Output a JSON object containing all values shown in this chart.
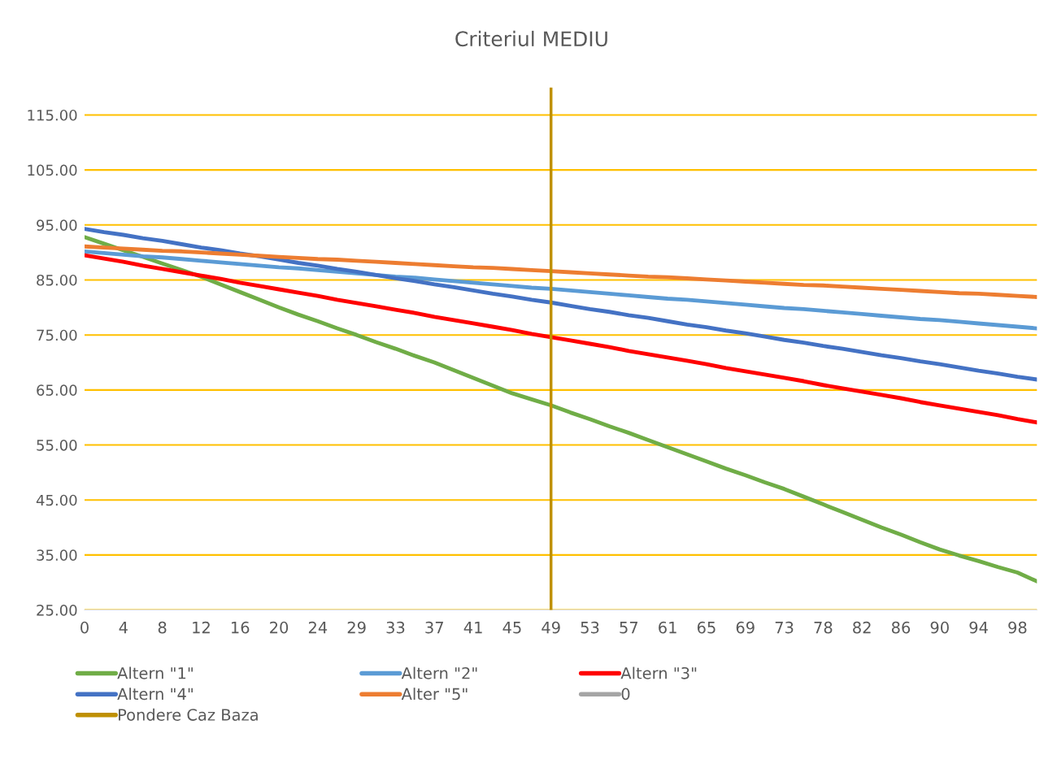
{
  "chart_data": {
    "type": "line",
    "title": "Criteriul MEDIU",
    "categories": [
      "0",
      null,
      "4",
      null,
      "8",
      null,
      "12",
      null,
      "16",
      null,
      "20",
      null,
      "24",
      null,
      "29",
      null,
      "33",
      null,
      "37",
      null,
      "41",
      null,
      "45",
      null,
      "49",
      null,
      "53",
      null,
      "57",
      null,
      "61",
      null,
      "65",
      null,
      "69",
      null,
      "73",
      null,
      "78",
      null,
      "82",
      null,
      "86",
      null,
      "90",
      null,
      "94",
      null,
      "98",
      null
    ],
    "series": [
      {
        "name": "Altern \"1\"",
        "color": "#70ad47",
        "values": [
          92.8,
          91.6,
          90.4,
          89.2,
          88.0,
          86.8,
          85.6,
          84.2,
          82.8,
          81.4,
          80.0,
          78.7,
          77.5,
          76.2,
          75.0,
          73.7,
          72.5,
          71.2,
          70.0,
          68.6,
          67.2,
          65.8,
          64.4,
          63.3,
          62.2,
          60.9,
          59.7,
          58.4,
          57.2,
          55.9,
          54.6,
          53.3,
          52.0,
          50.7,
          49.5,
          48.2,
          47.0,
          45.6,
          44.2,
          42.8,
          41.4,
          40.0,
          38.7,
          37.3,
          36.0,
          34.9,
          33.9,
          32.8,
          31.8,
          30.2
        ]
      },
      {
        "name": "Altern \"2\"",
        "color": "#5b9bd5",
        "values": [
          90.2,
          89.9,
          89.6,
          89.3,
          89.1,
          88.8,
          88.5,
          88.2,
          87.9,
          87.6,
          87.3,
          87.1,
          86.8,
          86.5,
          86.2,
          85.9,
          85.6,
          85.4,
          85.1,
          84.8,
          84.5,
          84.2,
          83.9,
          83.6,
          83.4,
          83.1,
          82.8,
          82.5,
          82.2,
          81.9,
          81.6,
          81.4,
          81.1,
          80.8,
          80.5,
          80.2,
          79.9,
          79.7,
          79.4,
          79.1,
          78.8,
          78.5,
          78.2,
          77.9,
          77.7,
          77.4,
          77.1,
          76.8,
          76.5,
          76.2
        ]
      },
      {
        "name": "Altern \"3\"",
        "color": "#ff0000",
        "values": [
          89.5,
          88.9,
          88.3,
          87.6,
          87.0,
          86.4,
          85.8,
          85.2,
          84.5,
          83.9,
          83.3,
          82.7,
          82.1,
          81.4,
          80.8,
          80.2,
          79.6,
          79.0,
          78.3,
          77.7,
          77.1,
          76.5,
          75.9,
          75.2,
          74.6,
          74.0,
          73.4,
          72.8,
          72.1,
          71.5,
          70.9,
          70.3,
          69.7,
          69.0,
          68.4,
          67.8,
          67.2,
          66.6,
          65.9,
          65.3,
          64.7,
          64.1,
          63.5,
          62.8,
          62.2,
          61.6,
          61.0,
          60.4,
          59.7,
          59.1
        ]
      },
      {
        "name": "Altern \"4\"",
        "color": "#4472c4",
        "values": [
          94.3,
          93.7,
          93.2,
          92.6,
          92.1,
          91.5,
          90.9,
          90.4,
          89.8,
          89.3,
          88.7,
          88.1,
          87.6,
          87.0,
          86.5,
          85.9,
          85.3,
          84.8,
          84.2,
          83.7,
          83.1,
          82.5,
          82.0,
          81.4,
          80.9,
          80.3,
          79.7,
          79.2,
          78.6,
          78.1,
          77.5,
          76.9,
          76.4,
          75.8,
          75.3,
          74.7,
          74.1,
          73.6,
          73.0,
          72.5,
          71.9,
          71.3,
          70.8,
          70.2,
          69.7,
          69.1,
          68.5,
          68.0,
          67.4,
          66.9
        ]
      },
      {
        "name": "Alter \"5\"",
        "color": "#ed7d31",
        "values": [
          91.1,
          90.9,
          90.7,
          90.5,
          90.3,
          90.2,
          90.0,
          89.8,
          89.6,
          89.4,
          89.2,
          89.0,
          88.8,
          88.7,
          88.5,
          88.3,
          88.1,
          87.9,
          87.7,
          87.5,
          87.3,
          87.2,
          87.0,
          86.8,
          86.6,
          86.4,
          86.2,
          86.0,
          85.8,
          85.6,
          85.5,
          85.3,
          85.1,
          84.9,
          84.7,
          84.5,
          84.3,
          84.1,
          84.0,
          83.8,
          83.6,
          83.4,
          83.2,
          83.0,
          82.8,
          82.6,
          82.5,
          82.3,
          82.1,
          81.9
        ]
      },
      {
        "name": "0",
        "color": "#a5a5a5",
        "values": [
          null,
          null,
          null,
          null,
          null,
          null,
          null,
          null,
          null,
          null,
          null,
          null,
          null,
          null,
          null,
          null,
          null,
          null,
          null,
          null,
          null,
          null,
          null,
          null,
          null,
          null,
          null,
          null,
          null,
          null,
          null,
          null,
          null,
          null,
          null,
          null,
          null,
          null,
          null,
          null,
          null,
          null,
          null,
          null,
          null,
          null,
          null,
          null,
          null,
          null
        ]
      }
    ],
    "ref_lines": [
      {
        "axis": "x",
        "value": "49",
        "label": "Pondere Caz Baza",
        "color": "#bf9000"
      }
    ],
    "ylim": [
      25,
      120
    ],
    "yticks": [
      {
        "value": 25,
        "label": "25.00"
      },
      {
        "value": 35,
        "label": "35.00"
      },
      {
        "value": 45,
        "label": "45.00"
      },
      {
        "value": 55,
        "label": "55.00"
      },
      {
        "value": 65,
        "label": "65.00"
      },
      {
        "value": 75,
        "label": "75.00"
      },
      {
        "value": 85,
        "label": "85.00"
      },
      {
        "value": 95,
        "label": "95.00"
      },
      {
        "value": 105,
        "label": "105.00"
      },
      {
        "value": 115,
        "label": "115.00"
      }
    ],
    "grid": "y",
    "legend": "bottom"
  }
}
